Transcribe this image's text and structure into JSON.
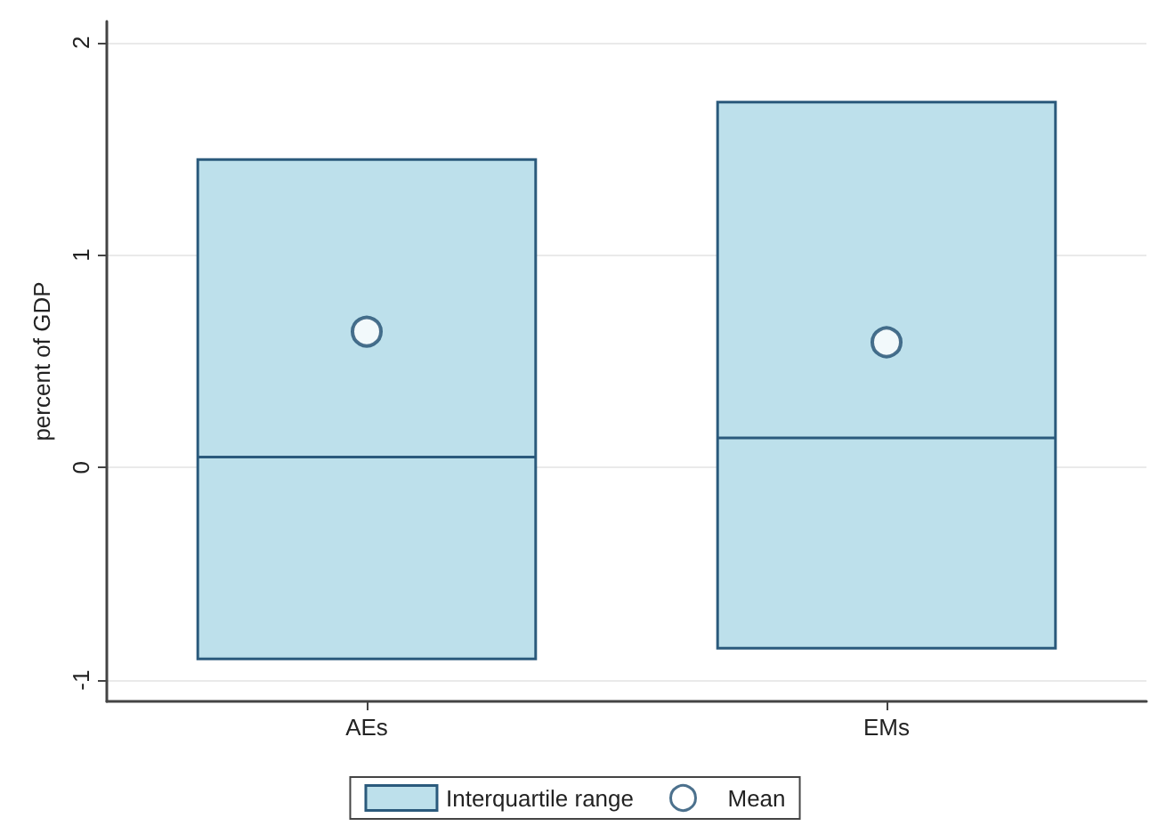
{
  "chart_data": {
    "type": "box",
    "ylabel": "percent of GDP",
    "categories": [
      "AEs",
      "EMs"
    ],
    "series": [
      {
        "name": "Interquartile range",
        "color": "#bde0eb",
        "boxes": [
          {
            "low": -0.9,
            "q1": -0.9,
            "median": 0.05,
            "q3": 1.45,
            "high": 1.45
          },
          {
            "low": -0.85,
            "q1": -0.85,
            "median": 0.14,
            "q3": 1.72,
            "high": 1.72
          }
        ]
      },
      {
        "name": "Mean",
        "type": "scatter",
        "color": "#1f4e70",
        "marker": "circle",
        "x": [
          "AEs",
          "EMs"
        ],
        "values": [
          0.64,
          0.59
        ]
      }
    ],
    "ylim": [
      -1.1,
      2.1
    ],
    "yticks": [
      -1,
      0,
      1,
      2
    ],
    "grid": "y",
    "legend": "bottom"
  }
}
